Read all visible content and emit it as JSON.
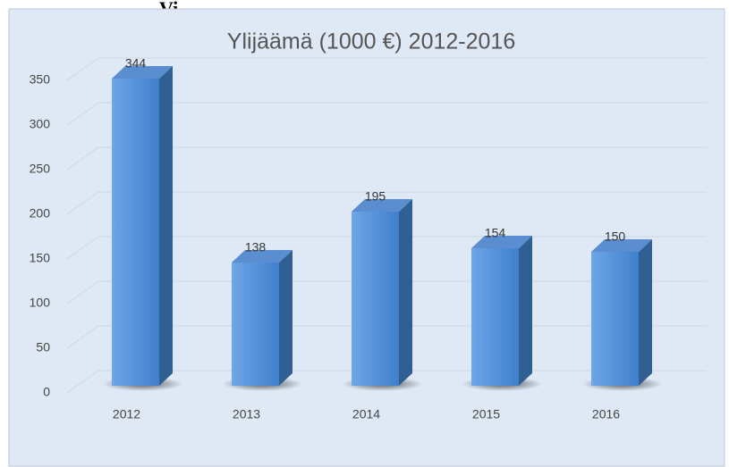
{
  "header": {
    "text": "Vi"
  },
  "chart_data": {
    "type": "bar3d",
    "title": "Ylijäämä (1000 €) 2012-2016",
    "categories": [
      "2012",
      "2013",
      "2014",
      "2015",
      "2016"
    ],
    "values": [
      344,
      138,
      195,
      154,
      150
    ],
    "color": "#4f8fd8",
    "ylim": [
      0,
      350
    ],
    "yticks": [
      0,
      50,
      100,
      150,
      200,
      250,
      300,
      350
    ],
    "grid": true
  }
}
